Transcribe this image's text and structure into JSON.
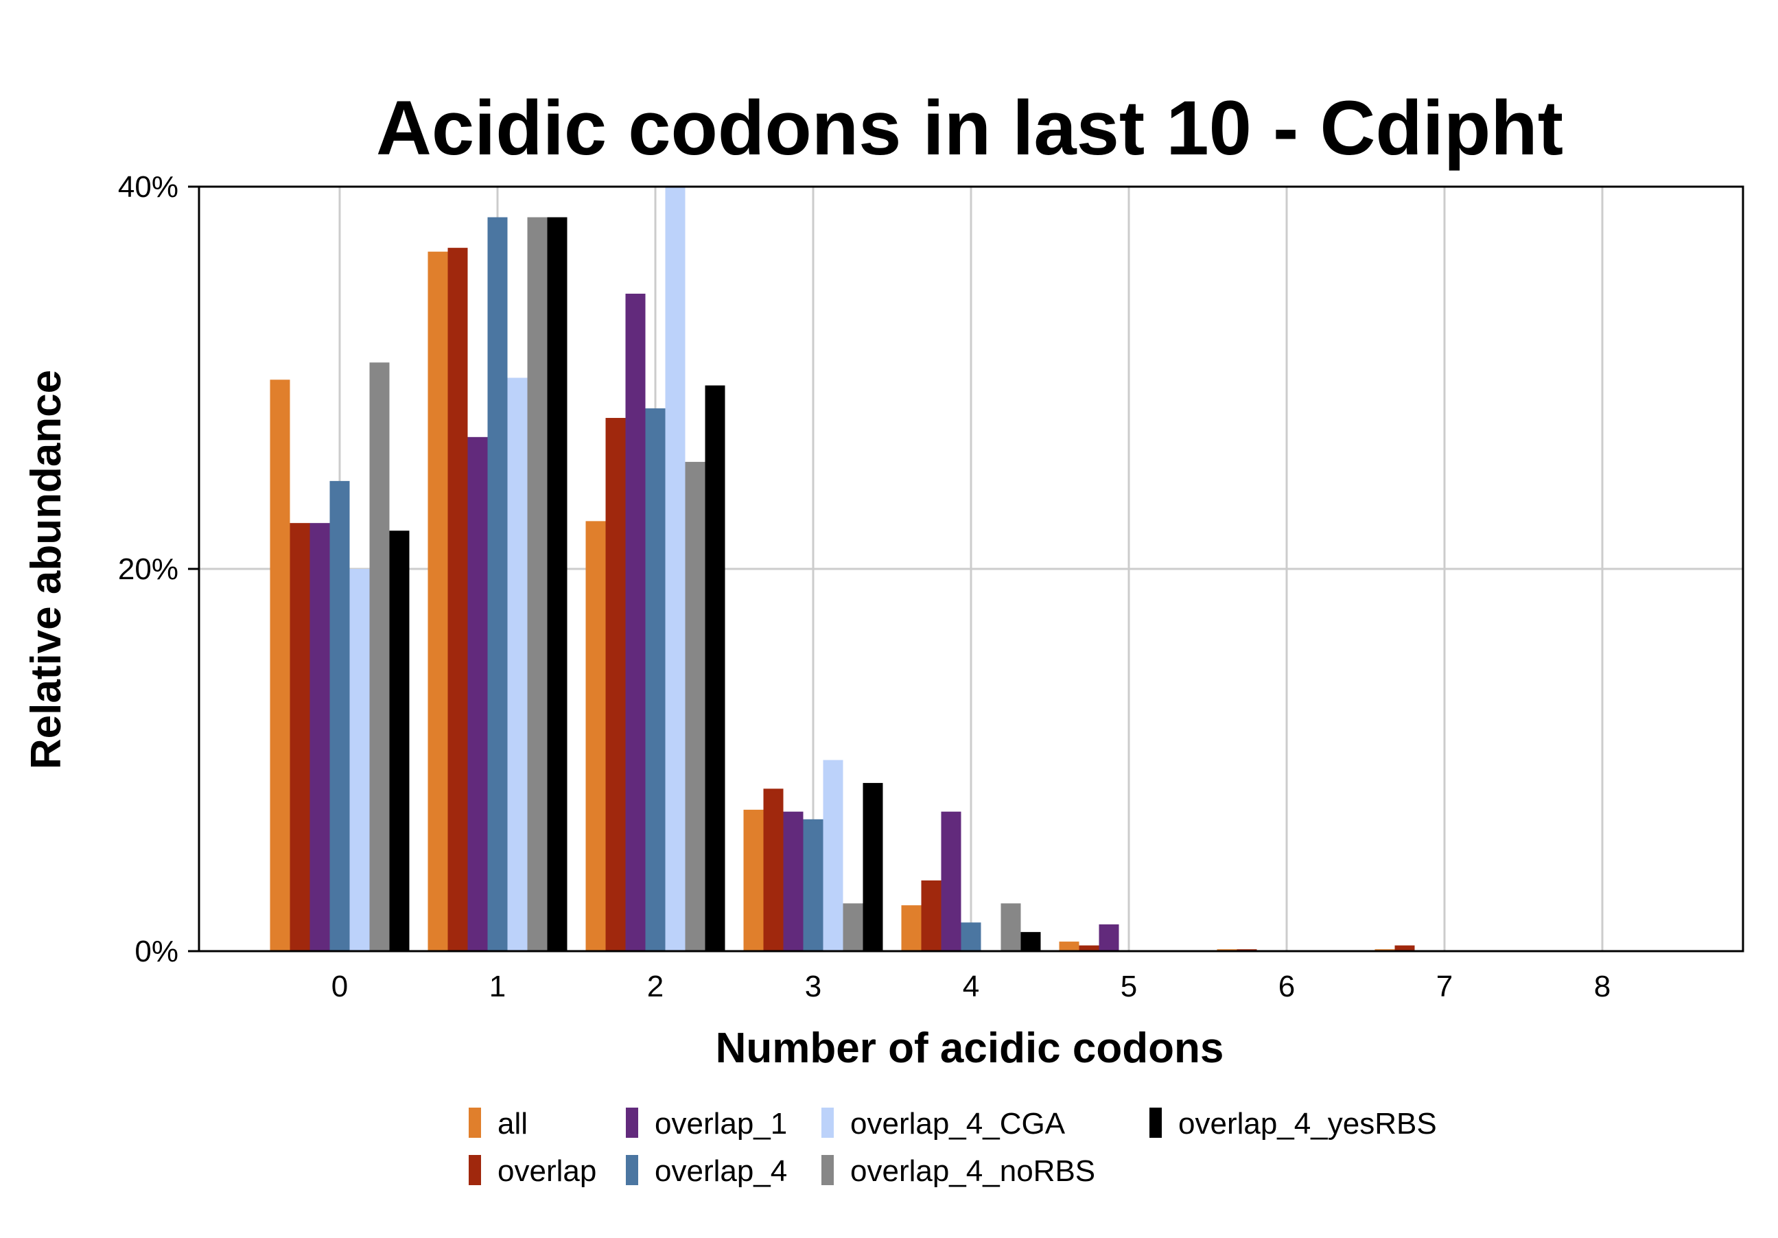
{
  "chart_data": {
    "type": "bar",
    "title": "Acidic codons in last 10 - Cdipht",
    "xlabel": "Number of acidic codons",
    "ylabel": "Relative abundance",
    "categories": [
      "0",
      "1",
      "2",
      "3",
      "4",
      "5",
      "6",
      "7",
      "8"
    ],
    "ylim": [
      0,
      40
    ],
    "yticks": [
      0,
      20,
      40
    ],
    "ytick_labels": [
      "0%",
      "20%",
      "40%"
    ],
    "grid": true,
    "legend_position": "bottom",
    "series": [
      {
        "name": "all",
        "color": "#e07f2c",
        "values": [
          29.9,
          36.6,
          22.5,
          7.4,
          2.4,
          0.5,
          0.1,
          0.1,
          0.0
        ]
      },
      {
        "name": "overlap",
        "color": "#a0280d",
        "values": [
          22.4,
          36.8,
          27.9,
          8.5,
          3.7,
          0.3,
          0.1,
          0.3,
          0.0
        ]
      },
      {
        "name": "overlap_1",
        "color": "#622a7c",
        "values": [
          22.4,
          26.9,
          34.4,
          7.3,
          7.3,
          1.4,
          0.0,
          0.0,
          0.0
        ]
      },
      {
        "name": "overlap_4",
        "color": "#4b76a1",
        "values": [
          24.6,
          38.4,
          28.4,
          6.9,
          1.5,
          0.0,
          0.0,
          0.0,
          0.0
        ]
      },
      {
        "name": "overlap_4_CGA",
        "color": "#bcd2fa",
        "values": [
          20.0,
          30.0,
          40.0,
          10.0,
          0.0,
          0.0,
          0.0,
          0.0,
          0.0
        ]
      },
      {
        "name": "overlap_4_noRBS",
        "color": "#878787",
        "values": [
          30.8,
          38.4,
          25.6,
          2.5,
          2.5,
          0.0,
          0.0,
          0.0,
          0.0
        ]
      },
      {
        "name": "overlap_4_yesRBS",
        "color": "#000000",
        "values": [
          22.0,
          38.4,
          29.6,
          8.8,
          1.0,
          0.0,
          0.0,
          0.0,
          0.0
        ]
      }
    ]
  }
}
